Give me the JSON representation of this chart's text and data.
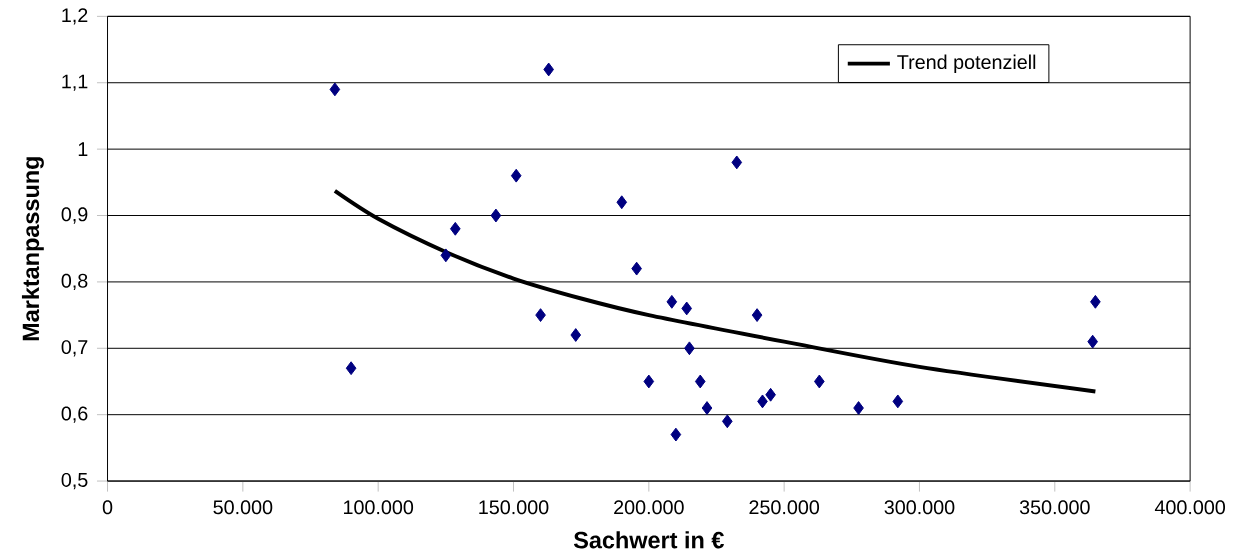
{
  "chart_data": {
    "type": "scatter",
    "xlabel": "Sachwert in €",
    "ylabel": "Marktanpassung",
    "xlim": [
      0,
      400000
    ],
    "ylim": [
      0.5,
      1.2
    ],
    "xticks": [
      0,
      {
        "value": 50000,
        "label": "50.000"
      },
      {
        "value": 100000,
        "label": "100.000"
      },
      {
        "value": 150000,
        "label": "150.000"
      },
      {
        "value": 200000,
        "label": "200.000"
      },
      {
        "value": 250000,
        "label": "250.000"
      },
      {
        "value": 300000,
        "label": "300.000"
      },
      {
        "value": 350000,
        "label": "350.000"
      },
      {
        "value": 400000,
        "label": "400.000"
      }
    ],
    "yticks": [
      {
        "value": 0.5,
        "label": "0,5"
      },
      {
        "value": 0.6,
        "label": "0,6"
      },
      {
        "value": 0.7,
        "label": "0,7"
      },
      {
        "value": 0.8,
        "label": "0,8"
      },
      {
        "value": 0.9,
        "label": "0,9"
      },
      1,
      {
        "value": 1.1,
        "label": "1,1"
      },
      {
        "value": 1.2,
        "label": "1,2"
      }
    ],
    "grid": "y",
    "legend": "top right",
    "series": [
      {
        "color": "#000080",
        "marker": "diamond",
        "x": [
          84000,
          90000,
          125000,
          128500,
          143500,
          151000,
          163000,
          160000,
          173000,
          190000,
          195500,
          200000,
          208500,
          210000,
          214000,
          215000,
          219000,
          221500,
          229000,
          232500,
          240000,
          242000,
          245000,
          263000,
          277500,
          292000,
          364000,
          365000
        ],
        "values": [
          1.09,
          0.67,
          0.84,
          0.88,
          0.9,
          0.96,
          1.12,
          0.75,
          0.72,
          0.92,
          0.82,
          0.65,
          0.77,
          0.57,
          0.76,
          0.7,
          0.65,
          0.61,
          0.59,
          0.98,
          0.75,
          0.62,
          0.63,
          0.65,
          0.61,
          0.62,
          0.71,
          0.77
        ]
      },
      {
        "type": "line",
        "name": "Trend potenziell",
        "color": "#000000",
        "marker": "none",
        "line_style": "solid",
        "x": [
          84000,
          100000,
          125000,
          150000,
          175000,
          200000,
          250000,
          300000,
          365000
        ],
        "values": [
          0.937,
          0.895,
          0.845,
          0.805,
          0.775,
          0.75,
          0.71,
          0.672,
          0.635
        ]
      }
    ]
  }
}
